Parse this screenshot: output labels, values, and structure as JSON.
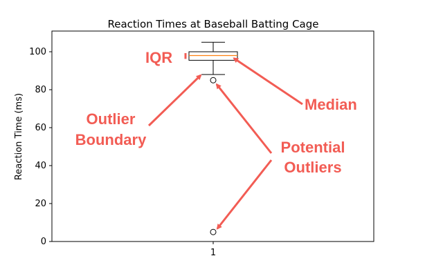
{
  "chart_data": {
    "type": "box",
    "title": "Reaction Times at Baseball Batting Cage",
    "xlabel": "",
    "ylabel": "Reaction Time (ms)",
    "categories": [
      "1"
    ],
    "ylim": [
      0,
      110
    ],
    "yticks": [
      "0",
      "20",
      "40",
      "60",
      "80",
      "100"
    ],
    "grid": false,
    "box": {
      "whisker_low": 88,
      "q1": 95.5,
      "median": 98,
      "q3": 100,
      "whisker_high": 105,
      "outliers": [
        85,
        5
      ]
    },
    "annotations": {
      "iqr": "IQR",
      "median": "Median",
      "boundary_line1": "Outlier",
      "boundary_line2": "Boundary",
      "outliers_line1": "Potential",
      "outliers_line2": "Outliers"
    }
  },
  "colors": {
    "annotation": "#f25c54",
    "median_line": "#ff7f0e",
    "box": "#000000"
  }
}
